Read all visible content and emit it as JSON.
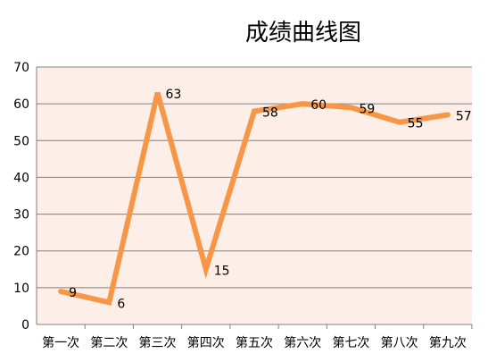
{
  "chart_data": {
    "type": "line",
    "title": "成绩曲线图",
    "categories": [
      "第一次",
      "第二次",
      "第三次",
      "第四次",
      "第五次",
      "第六次",
      "第七次",
      "第八次",
      "第九次"
    ],
    "series": [
      {
        "values": [
          9,
          6,
          63,
          15,
          58,
          60,
          59,
          55,
          57
        ]
      }
    ],
    "ylim": [
      0,
      70
    ],
    "yticks": [
      0,
      10,
      20,
      30,
      40,
      50,
      60,
      70
    ],
    "grid": true,
    "data_labels": true,
    "legend": "none",
    "colors": {
      "line": "#f79646",
      "plot_background": "#fdeee8",
      "gridline": "#808080",
      "axis": "#808080"
    }
  }
}
